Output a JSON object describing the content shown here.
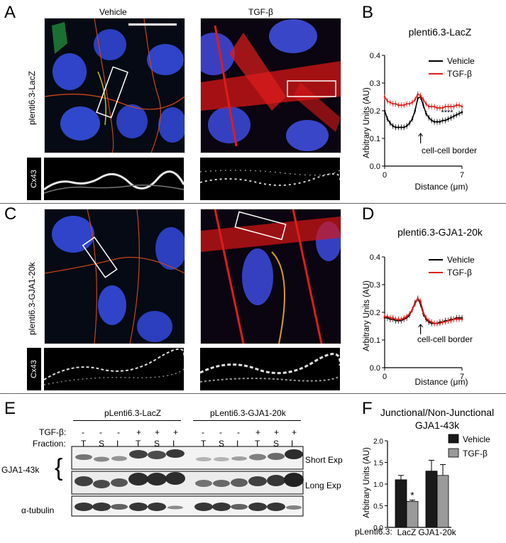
{
  "panels": {
    "A": "A",
    "B": "B",
    "C": "C",
    "D": "D",
    "E": "E",
    "F": "F"
  },
  "panel_a": {
    "col_vehicle": "Vehicle",
    "col_tgfb": "TGF-β",
    "row_label": "plenti6.3-LacZ",
    "strip_label": "Cx43"
  },
  "panel_c": {
    "row_label": "plenti6.3-GJA1-20k",
    "strip_label": "Cx43"
  },
  "chart_data": [
    {
      "id": "B",
      "type": "line",
      "title": "plenti6.3-LacZ",
      "xlabel": "Distance (μm)",
      "ylabel": "Arbitrary Units (AU)",
      "xlim": [
        0,
        7
      ],
      "ylim": [
        0,
        0.4
      ],
      "xticks": [
        "0",
        "7"
      ],
      "yticks": [
        "0.0",
        "0.1",
        "0.2",
        "0.3",
        "0.4"
      ],
      "annotation": "cell-cell border",
      "significance": "****",
      "legend_position": "top-right",
      "x": [
        0,
        0.25,
        0.5,
        0.75,
        1.0,
        1.25,
        1.5,
        1.75,
        2.0,
        2.25,
        2.5,
        2.75,
        3.0,
        3.25,
        3.5,
        3.75,
        4.0,
        4.25,
        4.5,
        4.75,
        5.0,
        5.25,
        5.5,
        5.75,
        6.0,
        6.25,
        6.5,
        6.75,
        7.0
      ],
      "series": [
        {
          "name": "Vehicle",
          "color": "#000000",
          "values": [
            0.2,
            0.17,
            0.155,
            0.145,
            0.14,
            0.14,
            0.14,
            0.14,
            0.145,
            0.155,
            0.17,
            0.2,
            0.245,
            0.25,
            0.22,
            0.19,
            0.175,
            0.165,
            0.16,
            0.16,
            0.16,
            0.165,
            0.165,
            0.17,
            0.175,
            0.18,
            0.185,
            0.19,
            0.195
          ]
        },
        {
          "name": "TGF-β",
          "color": "#e0201b",
          "values": [
            0.25,
            0.235,
            0.23,
            0.225,
            0.225,
            0.22,
            0.22,
            0.22,
            0.225,
            0.225,
            0.23,
            0.24,
            0.26,
            0.255,
            0.24,
            0.225,
            0.215,
            0.215,
            0.215,
            0.21,
            0.21,
            0.21,
            0.215,
            0.215,
            0.215,
            0.215,
            0.22,
            0.22,
            0.215
          ]
        }
      ]
    },
    {
      "id": "D",
      "type": "line",
      "title": "plenti6.3-GJA1-20k",
      "xlabel": "Distance (μm)",
      "ylabel": "Arbitrary Units (AU)",
      "xlim": [
        0,
        7
      ],
      "ylim": [
        0,
        0.4
      ],
      "xticks": [
        "0",
        "7"
      ],
      "yticks": [
        "0.0",
        "0.1",
        "0.2",
        "0.3",
        "0.4"
      ],
      "annotation": "cell-cell border",
      "legend_position": "top-right",
      "x": [
        0,
        0.25,
        0.5,
        0.75,
        1.0,
        1.25,
        1.5,
        1.75,
        2.0,
        2.25,
        2.5,
        2.75,
        3.0,
        3.25,
        3.5,
        3.75,
        4.0,
        4.25,
        4.5,
        4.75,
        5.0,
        5.25,
        5.5,
        5.75,
        6.0,
        6.25,
        6.5,
        6.75,
        7.0
      ],
      "series": [
        {
          "name": "Vehicle",
          "color": "#000000",
          "values": [
            0.18,
            0.18,
            0.175,
            0.175,
            0.17,
            0.17,
            0.17,
            0.175,
            0.18,
            0.19,
            0.21,
            0.235,
            0.25,
            0.23,
            0.195,
            0.175,
            0.165,
            0.16,
            0.16,
            0.16,
            0.165,
            0.165,
            0.17,
            0.17,
            0.175,
            0.175,
            0.18,
            0.18,
            0.18
          ]
        },
        {
          "name": "TGF-β",
          "color": "#e0201b",
          "values": [
            0.185,
            0.185,
            0.18,
            0.18,
            0.175,
            0.175,
            0.175,
            0.18,
            0.185,
            0.195,
            0.21,
            0.23,
            0.25,
            0.24,
            0.2,
            0.18,
            0.17,
            0.165,
            0.16,
            0.16,
            0.16,
            0.165,
            0.165,
            0.17,
            0.17,
            0.175,
            0.175,
            0.175,
            0.175
          ]
        }
      ]
    },
    {
      "id": "F",
      "type": "bar",
      "title": "Junctional/Non-Junctional GJA1-43k",
      "title_lines": [
        "Junctional/Non-Junctional",
        "GJA1-43k"
      ],
      "ylabel": "Arbitrary Units (AU)",
      "xlabel_prefix": "pLenti6.3:",
      "categories": [
        "LacZ",
        "GJA1-20k"
      ],
      "ylim": [
        0,
        2.0
      ],
      "yticks": [
        "0.0",
        "0.5",
        "1.0",
        "1.5",
        "2.0"
      ],
      "legend_position": "top-right",
      "significance": "*",
      "series": [
        {
          "name": "Vehicle",
          "color": "#1a1a1a",
          "values": [
            1.1,
            1.3
          ],
          "errors": [
            0.1,
            0.25
          ]
        },
        {
          "name": "TGF-β",
          "color": "#9a9a9a",
          "values": [
            0.6,
            1.2
          ],
          "errors": [
            0.03,
            0.25
          ]
        }
      ]
    }
  ],
  "panel_e": {
    "group_lacz": "pLenti6.3-LacZ",
    "group_gja1": "pLenti6.3-GJA1-20k",
    "tgfb_label": "TGF-β:",
    "fraction_label": "Fraction:",
    "tgfb_marks": [
      "-",
      "-",
      "-",
      "+",
      "+",
      "+",
      "-",
      "-",
      "-",
      "+",
      "+",
      "+"
    ],
    "fractions": [
      "T",
      "S",
      "I",
      "T",
      "S",
      "I",
      "T",
      "S",
      "I",
      "T",
      "S",
      "I"
    ],
    "protein_label": "GJA1-43k",
    "short_exp": "Short Exp",
    "long_exp": "Long Exp",
    "tubulin_label": "α-tubulin"
  }
}
